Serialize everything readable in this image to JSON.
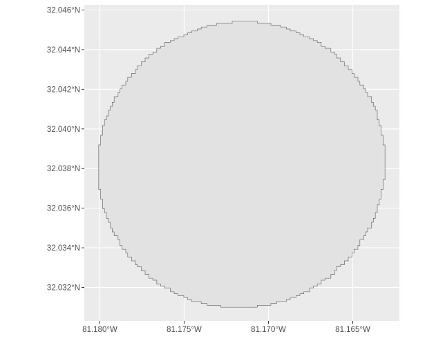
{
  "map": {
    "projection": "geographic",
    "background_color": "#EBEBEB",
    "gridline_color": "#FFFFFF",
    "axis_text_color": "#4D4D4D",
    "x_ticks": [
      {
        "value": -81.18,
        "label": "81.180°W"
      },
      {
        "value": -81.175,
        "label": "81.175°W"
      },
      {
        "value": -81.17,
        "label": "81.170°W"
      },
      {
        "value": -81.165,
        "label": "81.165°W"
      }
    ],
    "y_ticks": [
      {
        "value": 32.032,
        "label": "32.032°N"
      },
      {
        "value": 32.034,
        "label": "32.034°N"
      },
      {
        "value": 32.036,
        "label": "32.036°N"
      },
      {
        "value": 32.038,
        "label": "32.038°N"
      },
      {
        "value": 32.04,
        "label": "32.040°N"
      },
      {
        "value": 32.042,
        "label": "32.042°N"
      },
      {
        "value": 32.044,
        "label": "32.044°N"
      },
      {
        "value": 32.046,
        "label": "32.046°N"
      }
    ],
    "feature": {
      "type": "circle",
      "fill": "#E2E2E2",
      "stroke": "#6E6E6E",
      "center": {
        "lon": -81.1716,
        "lat": 32.0382
      },
      "radius_deg_lat": 0.00722
    }
  }
}
